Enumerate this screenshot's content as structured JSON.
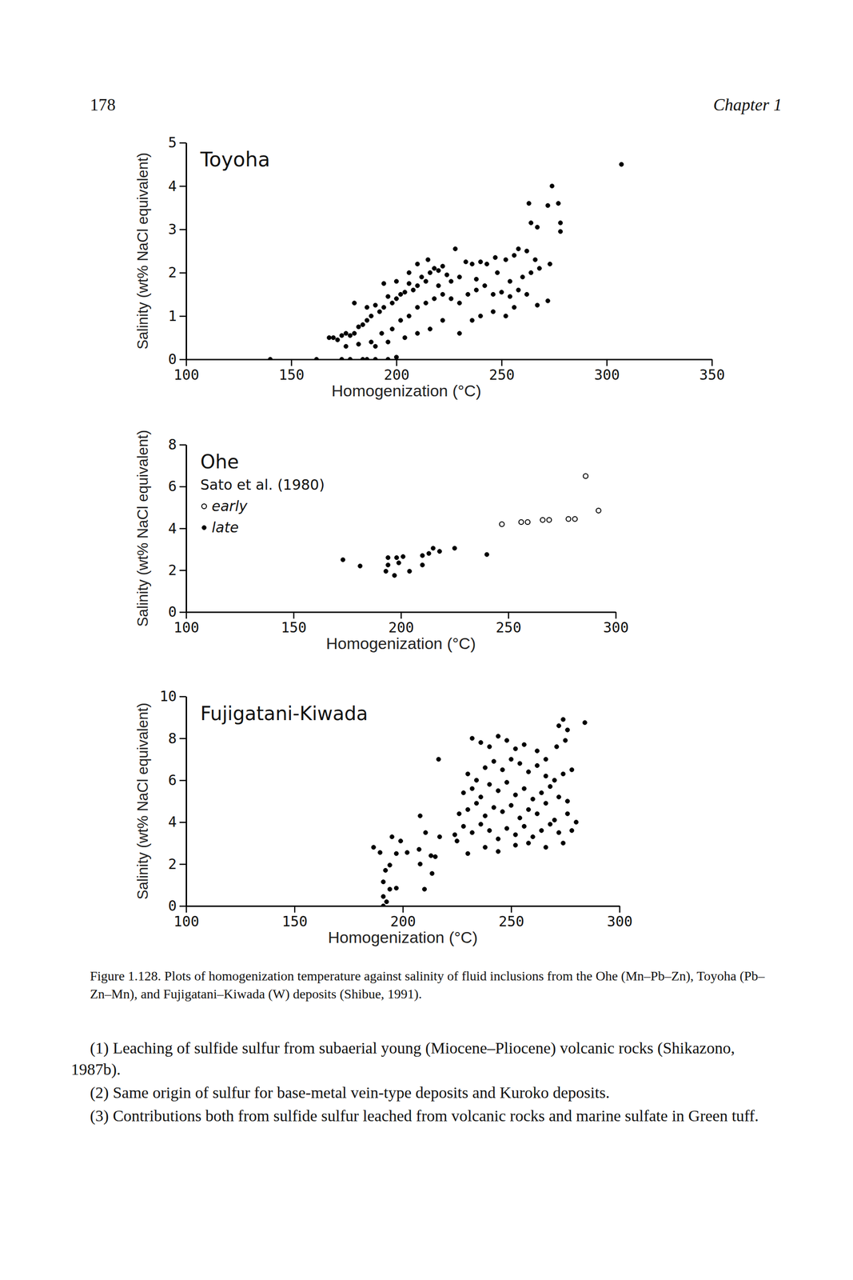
{
  "page": {
    "page_number": "178",
    "header": "Chapter 1",
    "caption": "Figure 1.128. Plots of homogenization temperature against salinity of fluid inclusions from the Ohe (Mn–Pb–Zn), Toyoha (Pb–Zn–Mn), and Fujigatani–Kiwada (W) deposits (Shibue, 1991).",
    "paragraphs": [
      "(1) Leaching of sulfide sulfur from subaerial young (Miocene–Pliocene) volcanic rocks (Shikazono, 1987b).",
      "(2) Same origin of sulfur for base-metal vein-type deposits and Kuroko deposits.",
      "(3) Contributions both from sulfide sulfur leached from volcanic rocks and marine sulfate in Green tuff."
    ]
  },
  "chart_data": [
    {
      "type": "scatter",
      "title": "Toyoha",
      "x_label": "Homogenization (°C)",
      "y_label": "Salinity (wt% NaCl equivalent)",
      "xlim": [
        100,
        350
      ],
      "xticks": [
        100,
        150,
        200,
        250,
        300,
        350
      ],
      "ylim": [
        0,
        5
      ],
      "yticks": [
        0,
        1,
        2,
        3,
        4,
        5
      ],
      "series": [
        {
          "color": "#000000",
          "marker": "circle",
          "x": [
            307,
            274,
            263,
            272,
            277,
            264,
            267,
            278,
            278,
            273,
            272,
            247,
            252,
            256,
            258,
            262,
            266,
            268,
            243,
            240,
            236,
            233,
            228,
            215,
            216,
            218,
            220,
            222,
            224,
            212,
            214,
            210,
            208,
            206,
            204,
            202,
            200,
            198,
            196,
            194,
            192,
            190,
            188,
            186,
            184,
            182,
            180,
            178,
            176,
            174,
            170,
            172,
            168,
            176,
            182,
            188,
            193,
            198,
            202,
            206,
            210,
            214,
            218,
            222,
            226,
            230,
            234,
            238,
            242,
            246,
            250,
            254,
            258,
            262,
            256,
            252,
            246,
            240,
            236,
            230,
            222,
            216,
            210,
            204,
            196,
            190,
            186,
            180,
            194,
            200,
            206,
            210,
            220,
            226,
            230,
            238,
            248,
            254,
            260,
            264,
            267,
            140,
            162,
            174,
            178,
            184,
            186,
            190,
            196,
            200
          ],
          "values": [
            4.5,
            4.0,
            3.6,
            3.55,
            3.6,
            3.15,
            3.05,
            3.15,
            2.95,
            2.2,
            1.35,
            2.35,
            2.3,
            2.4,
            2.55,
            2.5,
            2.3,
            2.1,
            2.2,
            2.25,
            2.2,
            2.25,
            2.55,
            2.3,
            2.0,
            2.1,
            2.05,
            2.15,
            1.95,
            1.9,
            1.8,
            1.7,
            1.6,
            1.75,
            1.55,
            1.5,
            1.4,
            1.3,
            1.45,
            1.2,
            1.1,
            1.25,
            1.0,
            0.9,
            0.8,
            0.75,
            0.6,
            0.55,
            0.6,
            0.55,
            0.5,
            0.45,
            0.5,
            0.3,
            0.35,
            0.4,
            0.6,
            0.7,
            0.9,
            1.0,
            1.2,
            1.3,
            1.4,
            1.5,
            1.4,
            1.3,
            1.5,
            1.6,
            1.7,
            1.5,
            1.55,
            1.45,
            1.6,
            1.5,
            1.2,
            1.0,
            1.1,
            1.0,
            0.9,
            0.6,
            0.9,
            0.7,
            0.6,
            0.5,
            0.4,
            0.3,
            1.2,
            1.3,
            1.75,
            1.8,
            2.0,
            2.2,
            1.7,
            1.8,
            1.9,
            1.85,
            2.0,
            1.8,
            1.9,
            2.0,
            1.25,
            0,
            0,
            0,
            0,
            0,
            0,
            0,
            0,
            0.05
          ]
        }
      ]
    },
    {
      "type": "scatter",
      "title": "Ohe",
      "annotation": "Sato et al. (1980)",
      "x_label": "Homogenization (°C)",
      "y_label": "Salinity (wt% NaCl equivalent)",
      "xlim": [
        100,
        300
      ],
      "xticks": [
        100,
        150,
        200,
        250,
        300
      ],
      "ylim": [
        0,
        8
      ],
      "yticks": [
        0,
        2,
        4,
        6,
        8
      ],
      "legend": "upper left",
      "series": [
        {
          "name": "early",
          "color": "#000000",
          "marker": "open_circle",
          "x": [
            286,
            292,
            247,
            256,
            259,
            266,
            269,
            278,
            281
          ],
          "values": [
            6.5,
            4.85,
            4.2,
            4.3,
            4.3,
            4.4,
            4.4,
            4.45,
            4.45
          ]
        },
        {
          "name": "late",
          "color": "#000000",
          "marker": "circle",
          "x": [
            173,
            181,
            194,
            198,
            201,
            194,
            199,
            193,
            197,
            204,
            210,
            213,
            215,
            218,
            225,
            240,
            210
          ],
          "values": [
            2.5,
            2.2,
            2.6,
            2.6,
            2.65,
            2.25,
            2.35,
            1.95,
            1.75,
            1.95,
            2.7,
            2.8,
            3.05,
            2.9,
            3.05,
            2.75,
            2.25
          ]
        }
      ]
    },
    {
      "type": "scatter",
      "title": "Fujigatani-Kiwada",
      "x_label": "Homogenization (°C)",
      "y_label": "Salinity (wt% NaCl equivalent)",
      "xlim": [
        100,
        300
      ],
      "xticks": [
        100,
        150,
        200,
        250,
        300
      ],
      "ylim": [
        0,
        10
      ],
      "yticks": [
        0,
        2,
        4,
        6,
        8,
        10
      ],
      "series": [
        {
          "color": "#000000",
          "marker": "circle",
          "x": [
            191,
            192.5,
            191,
            194,
            191,
            197,
            210,
            192,
            194,
            186.5,
            189.5,
            197,
            202,
            207.5,
            213,
            213.5,
            208,
            195,
            199,
            210.5,
            217,
            208,
            216.5,
            225,
            215,
            284,
            232,
            236,
            240,
            244,
            248,
            252,
            256,
            262,
            266,
            272,
            274,
            276,
            275,
            271,
            230,
            234,
            238,
            242,
            246,
            250,
            254,
            258,
            262,
            266,
            270,
            274,
            278,
            228,
            232,
            236,
            240,
            244,
            248,
            252,
            256,
            260,
            264,
            268,
            272,
            276,
            226,
            230,
            234,
            238,
            242,
            246,
            250,
            254,
            258,
            262,
            266,
            270,
            276,
            280,
            224,
            228,
            232,
            236,
            240,
            244,
            248,
            252,
            256,
            260,
            264,
            268,
            272,
            278,
            238,
            244,
            252,
            258,
            266,
            274,
            230
          ],
          "values": [
            0,
            0.2,
            0.45,
            0.8,
            1.15,
            0.85,
            0.8,
            1.7,
            1.95,
            2.8,
            2.55,
            2.5,
            2.55,
            2.7,
            2.4,
            1.55,
            2.0,
            3.3,
            3.1,
            3.5,
            3.3,
            4.3,
            7.0,
            3.1,
            2.35,
            8.75,
            8.0,
            7.8,
            7.6,
            8.1,
            7.9,
            7.5,
            7.7,
            7.4,
            7.0,
            8.6,
            8.9,
            8.4,
            7.9,
            7.6,
            6.3,
            6.0,
            6.6,
            6.9,
            6.5,
            7.0,
            6.8,
            6.4,
            6.7,
            6.2,
            6.0,
            6.3,
            6.5,
            5.4,
            5.6,
            5.2,
            5.8,
            5.5,
            5.9,
            5.3,
            5.6,
            5.1,
            5.4,
            5.7,
            5.2,
            5.0,
            4.4,
            4.6,
            4.9,
            4.3,
            4.7,
            4.5,
            4.8,
            4.2,
            4.6,
            4.4,
            4.9,
            4.1,
            4.4,
            4.0,
            3.4,
            3.8,
            3.5,
            3.9,
            3.6,
            3.2,
            3.7,
            3.4,
            3.8,
            3.3,
            3.6,
            3.9,
            3.5,
            3.6,
            2.8,
            2.6,
            2.9,
            3.0,
            2.8,
            3.0,
            2.5
          ]
        }
      ]
    }
  ]
}
